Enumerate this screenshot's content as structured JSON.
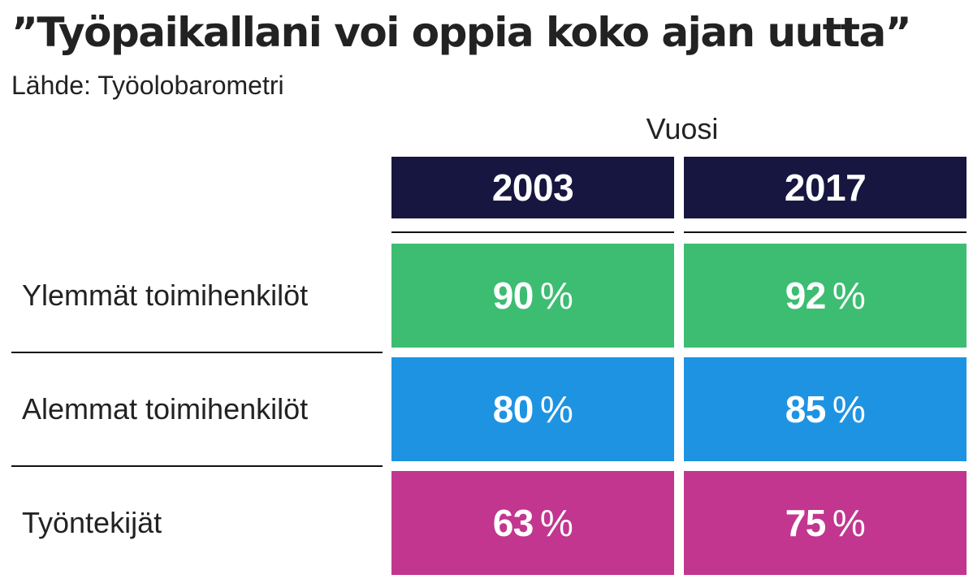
{
  "title": "”Työpaikallani voi oppia koko ajan uutta”",
  "subtitle": "Lähde: Työolobarometri",
  "chart_data": {
    "type": "table",
    "title": "”Työpaikallani voi oppia koko ajan uutta”",
    "subtitle": "Lähde: Työolobarometri",
    "column_group_label": "Vuosi",
    "columns": [
      "2003",
      "2017"
    ],
    "unit": "%",
    "rows": [
      {
        "label": "Ylemmät toimihenkilöt",
        "values": [
          90,
          92
        ],
        "color": "#3dbd72"
      },
      {
        "label": "Alemmat toimihenkilöt",
        "values": [
          80,
          85
        ],
        "color": "#1e93e2"
      },
      {
        "label": "Työntekijät",
        "values": [
          63,
          75
        ],
        "color": "#c2368f"
      }
    ],
    "header_color": "#171641"
  }
}
